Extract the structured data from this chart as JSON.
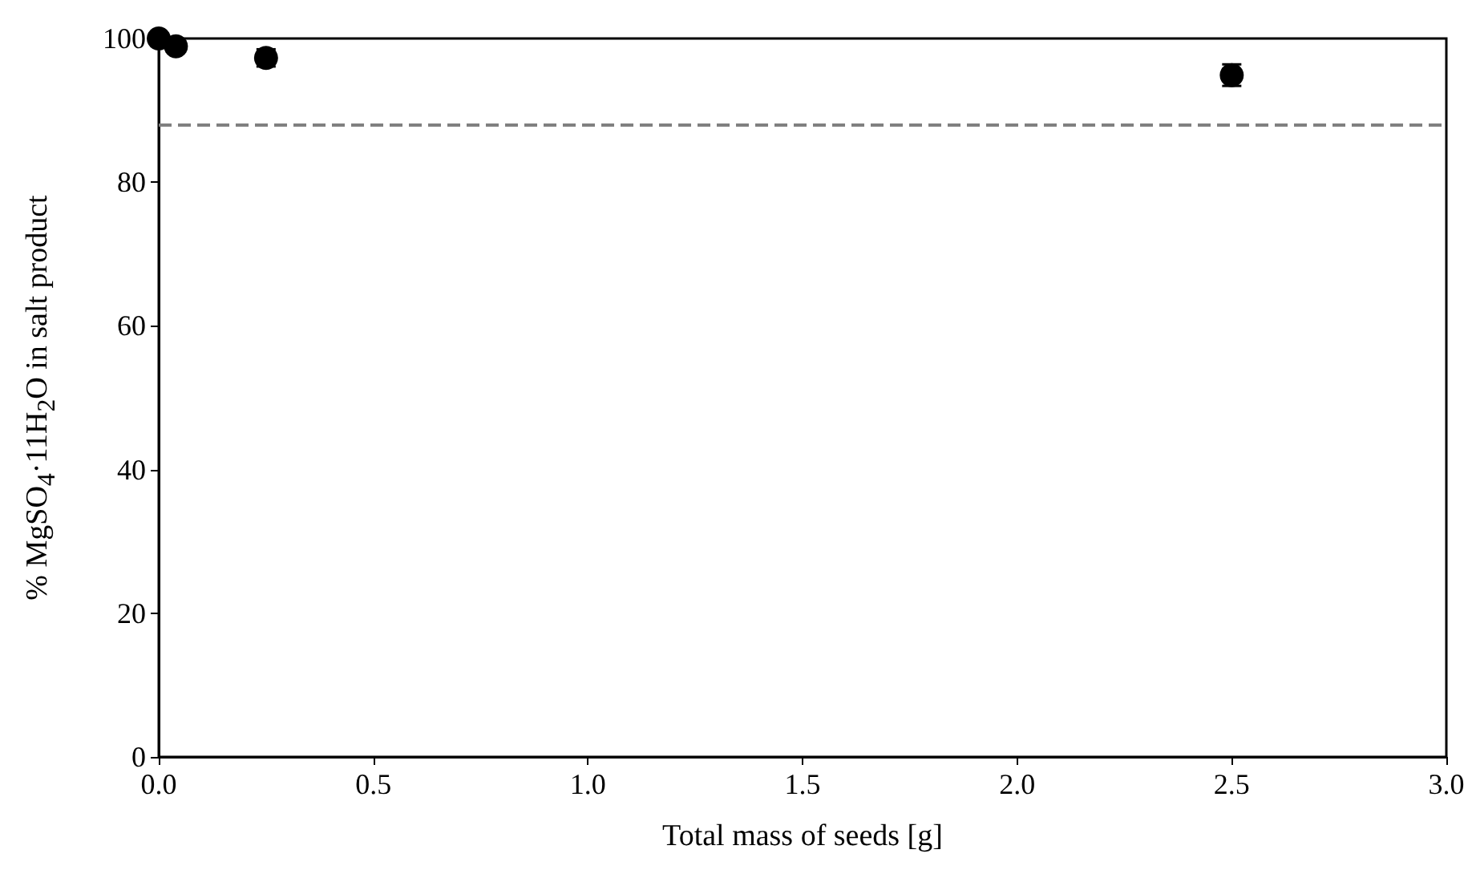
{
  "chart_data": {
    "type": "scatter",
    "xlabel": "Total mass of seeds [g]",
    "ylabel": "% MgSO$_{4}$·11H$_{2}$O in salt product",
    "x": [
      0,
      0.04,
      0.25,
      2.5
    ],
    "series": [
      {
        "color": "#000000",
        "values": [
          100,
          98.9,
          97.3,
          94.9
        ],
        "errors": [
          null,
          null,
          1.2,
          1.5
        ]
      }
    ],
    "xlim": [
      0,
      3
    ],
    "xticks": [
      {
        "value": 0,
        "label": "0.0"
      },
      {
        "value": 0.5,
        "label": "0.5"
      },
      {
        "value": 1,
        "label": "1.0"
      },
      {
        "value": 1.5,
        "label": "1.5"
      },
      {
        "value": 2,
        "label": "2.0"
      },
      {
        "value": 2.5,
        "label": "2.5"
      },
      {
        "value": 3,
        "label": "3.0"
      }
    ],
    "ylim": [
      0,
      100
    ],
    "yticks": [
      0,
      20,
      40,
      60,
      80,
      100
    ],
    "ref_lines": [
      {
        "axis": "y",
        "value": 88,
        "color": "#808080",
        "line_style": "dashed"
      }
    ],
    "marker": "circle",
    "grid": false
  }
}
